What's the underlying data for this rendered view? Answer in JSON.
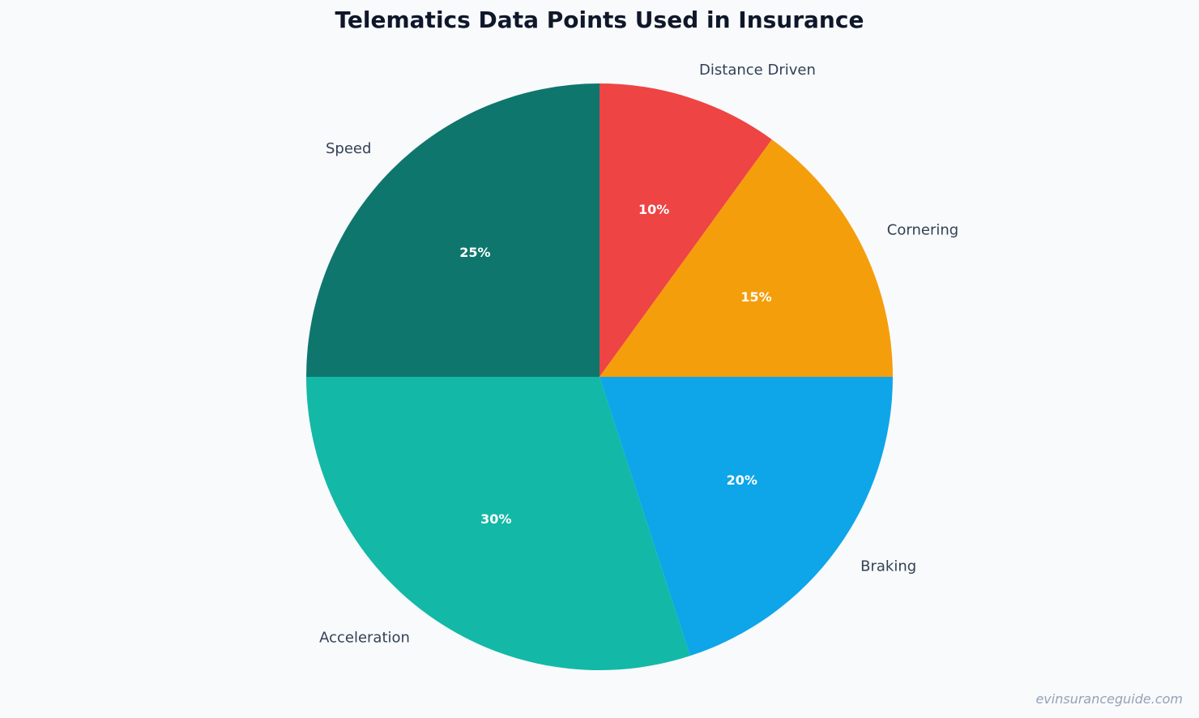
{
  "chart_data": {
    "type": "pie",
    "title": "Telematics Data Points Used in Insurance",
    "categories": [
      "Distance Driven",
      "Cornering",
      "Braking",
      "Acceleration",
      "Speed"
    ],
    "values": [
      10,
      15,
      20,
      30,
      25
    ],
    "value_labels": [
      "10%",
      "15%",
      "20%",
      "30%",
      "25%"
    ],
    "colors": [
      "#ef4444",
      "#f59e0b",
      "#0ea5e9",
      "#14b8a6",
      "#0f766e"
    ],
    "start_angle": "12 o'clock",
    "direction": "clockwise",
    "legend": "none"
  },
  "watermark": "evinsuranceguide.com"
}
